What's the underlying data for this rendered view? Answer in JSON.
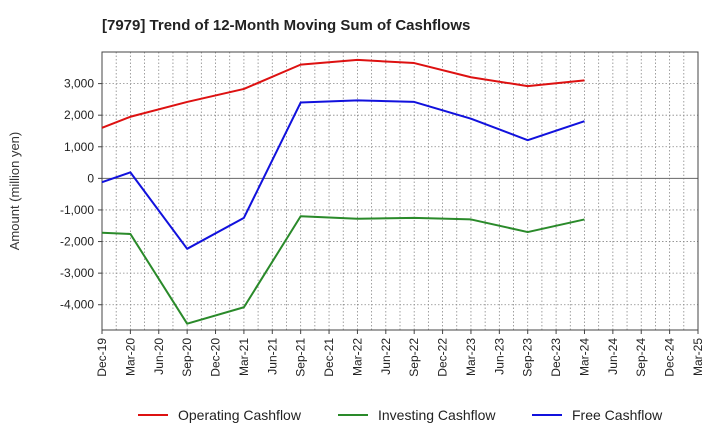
{
  "chart_data": {
    "type": "line",
    "title": "[7979]  Trend of 12-Month Moving Sum of Cashflows",
    "xlabel": "",
    "ylabel": "Amount (million yen)",
    "categories": [
      "Dec-19",
      "Mar-20",
      "Jun-20",
      "Sep-20",
      "Dec-20",
      "Mar-21",
      "Jun-21",
      "Sep-21",
      "Dec-21",
      "Mar-22",
      "Jun-22",
      "Sep-22",
      "Dec-22",
      "Mar-23",
      "Jun-23",
      "Sep-23",
      "Dec-23",
      "Mar-24",
      "Jun-24",
      "Sep-24",
      "Dec-24",
      "Mar-25"
    ],
    "y_ticks": [
      -4000,
      -3000,
      -2000,
      -1000,
      0,
      1000,
      2000,
      3000
    ],
    "y_tick_labels": [
      "-4,000",
      "-3,000",
      "-2,000",
      "-1,000",
      "0",
      "1,000",
      "2,000",
      "3,000"
    ],
    "ylim": [
      -4800,
      4000
    ],
    "grid": true,
    "legend_position": "bottom",
    "series": [
      {
        "name": "Operating Cashflow",
        "color": "#dd1111",
        "x": [
          "Dec-19",
          "Mar-20",
          "Sep-20",
          "Mar-21",
          "Sep-21",
          "Mar-22",
          "Sep-22",
          "Mar-23",
          "Sep-23",
          "Mar-24"
        ],
        "values": [
          1600,
          1950,
          2420,
          2830,
          3600,
          3750,
          3650,
          3200,
          2920,
          3100
        ]
      },
      {
        "name": "Investing Cashflow",
        "color": "#2a8a2a",
        "x": [
          "Dec-19",
          "Mar-20",
          "Sep-20",
          "Mar-21",
          "Sep-21",
          "Mar-22",
          "Sep-22",
          "Mar-23",
          "Sep-23",
          "Mar-24"
        ],
        "values": [
          -1720,
          -1760,
          -4600,
          -4080,
          -1200,
          -1280,
          -1250,
          -1300,
          -1700,
          -1300
        ]
      },
      {
        "name": "Free Cashflow",
        "color": "#1111dd",
        "x": [
          "Dec-19",
          "Mar-20",
          "Sep-20",
          "Mar-21",
          "Sep-21",
          "Mar-22",
          "Sep-22",
          "Mar-23",
          "Sep-23",
          "Mar-24"
        ],
        "values": [
          -120,
          190,
          -2230,
          -1250,
          2400,
          2470,
          2420,
          1890,
          1210,
          1810
        ]
      }
    ]
  }
}
